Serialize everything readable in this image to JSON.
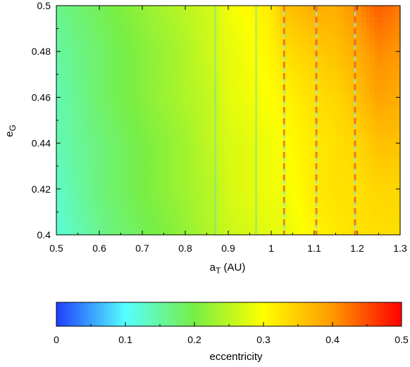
{
  "chart_data": [
    {
      "type": "heatmap",
      "title": "",
      "xlabel_main": "a",
      "xlabel_sub": "T",
      "xlabel_unit": " (AU)",
      "ylabel_main": "e",
      "ylabel_sub": "G",
      "xlim": [
        0.5,
        1.3
      ],
      "ylim": [
        0.4,
        0.5
      ],
      "x_ticks": [
        0.5,
        0.6,
        0.7,
        0.8,
        0.9,
        1.0,
        1.1,
        1.2,
        1.3
      ],
      "x_tick_labels": [
        "0.5",
        "0.6",
        "0.7",
        "0.8",
        "0.9",
        "1",
        "1.1",
        "1.2",
        "1.3"
      ],
      "y_ticks": [
        0.4,
        0.42,
        0.44,
        0.46,
        0.48,
        0.5
      ],
      "y_tick_labels": [
        "0.4",
        "0.42",
        "0.44",
        "0.46",
        "0.48",
        "0.5"
      ],
      "grid": false,
      "color_value_name": "eccentricity",
      "x": [
        0.5,
        0.6,
        0.7,
        0.8,
        0.87,
        0.9,
        1.0,
        1.03,
        1.1,
        1.15,
        1.2,
        1.25,
        1.3
      ],
      "y": [
        0.4,
        0.42,
        0.44,
        0.46,
        0.48,
        0.5
      ],
      "z_rows_bottom_to_top": [
        [
          0.12,
          0.16,
          0.19,
          0.22,
          0.25,
          0.26,
          0.28,
          0.28,
          0.31,
          0.32,
          0.33,
          0.33,
          0.33
        ],
        [
          0.13,
          0.17,
          0.2,
          0.23,
          0.25,
          0.27,
          0.29,
          0.29,
          0.32,
          0.33,
          0.33,
          0.34,
          0.34
        ],
        [
          0.14,
          0.17,
          0.2,
          0.23,
          0.26,
          0.27,
          0.29,
          0.3,
          0.32,
          0.33,
          0.34,
          0.36,
          0.36
        ],
        [
          0.14,
          0.18,
          0.21,
          0.24,
          0.26,
          0.28,
          0.3,
          0.31,
          0.33,
          0.34,
          0.36,
          0.39,
          0.38
        ],
        [
          0.15,
          0.18,
          0.21,
          0.24,
          0.27,
          0.28,
          0.31,
          0.33,
          0.35,
          0.36,
          0.38,
          0.41,
          0.4
        ],
        [
          0.16,
          0.19,
          0.22,
          0.25,
          0.27,
          0.29,
          0.32,
          0.36,
          0.38,
          0.38,
          0.41,
          0.44,
          0.42
        ]
      ],
      "resonance_lines_x": [
        0.87,
        0.965,
        1.03,
        1.105,
        1.195
      ]
    },
    {
      "type": "colorbar",
      "label": "eccentricity",
      "range": [
        0,
        0.5
      ],
      "ticks": [
        0,
        0.1,
        0.2,
        0.3,
        0.4,
        0.5
      ],
      "tick_labels": [
        "0",
        "0.1",
        "0.2",
        "0.3",
        "0.4",
        "0.5"
      ],
      "colors": [
        "#1f3dff",
        "#55ffff",
        "#77ee44",
        "#ffff00",
        "#ff9900",
        "#ff0000"
      ]
    }
  ]
}
